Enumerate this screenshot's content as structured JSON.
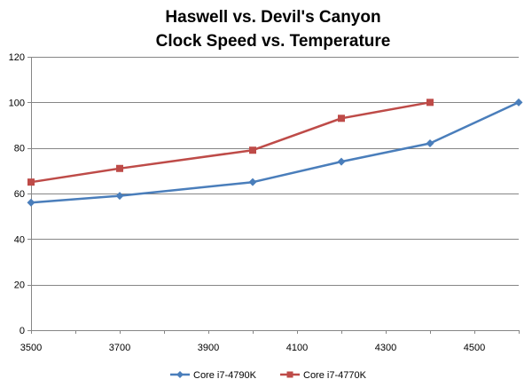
{
  "chart_data": {
    "type": "line",
    "title": [
      "Haswell vs. Devil's Canyon",
      "Clock Speed vs. Temperature"
    ],
    "xlabel": "",
    "ylabel": "",
    "xlim": [
      3500,
      4600
    ],
    "ylim": [
      0,
      120
    ],
    "x_ticks": [
      3500,
      3700,
      3900,
      4100,
      4300,
      4500
    ],
    "y_ticks": [
      0,
      20,
      40,
      60,
      80,
      100,
      120
    ],
    "grid": "horizontal",
    "legend_position": "bottom",
    "series": [
      {
        "name": "Core i7-4790K",
        "color": "#4a7ebb",
        "marker": "diamond",
        "x": [
          3500,
          3700,
          4000,
          4200,
          4400,
          4600
        ],
        "y": [
          56,
          59,
          65,
          74,
          82,
          100
        ]
      },
      {
        "name": "Core i7-4770K",
        "color": "#be4b48",
        "marker": "square",
        "x": [
          3500,
          3700,
          4000,
          4200,
          4400
        ],
        "y": [
          65,
          71,
          79,
          93,
          100
        ]
      }
    ]
  }
}
